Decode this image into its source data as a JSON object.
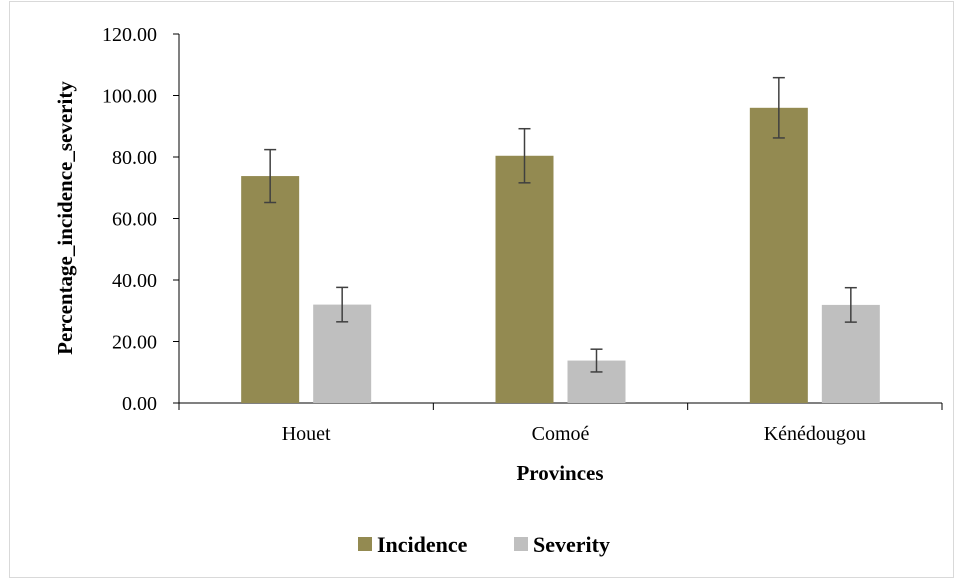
{
  "chart_data": {
    "type": "bar",
    "categories": [
      "Houet",
      "Comoé",
      "Kénédougou"
    ],
    "series": [
      {
        "name": "Incidence",
        "values": [
          73.8,
          80.4,
          96.0
        ],
        "error": [
          8.6,
          8.8,
          9.8
        ],
        "color": "#938a51"
      },
      {
        "name": "Severity",
        "values": [
          32.0,
          13.8,
          31.9
        ],
        "error": [
          5.6,
          3.7,
          5.6
        ],
        "color": "#bfbfbf"
      }
    ],
    "xlabel": "Provinces",
    "ylabel": "Percentage_incidence_severity",
    "ylim": [
      0,
      120
    ],
    "yticks": [
      "0.00",
      "20.00",
      "40.00",
      "60.00",
      "80.00",
      "100.00",
      "120.00"
    ],
    "grid": false,
    "legend": "bottom"
  }
}
